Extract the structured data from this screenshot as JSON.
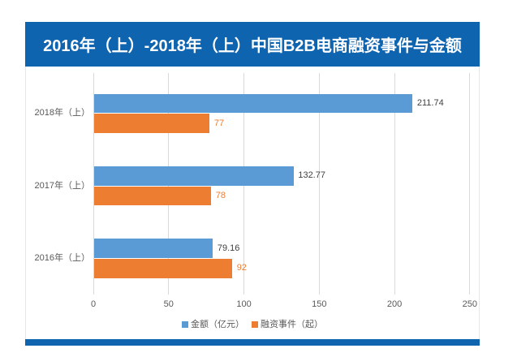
{
  "page": {
    "background": "#ffffff"
  },
  "card": {
    "title": "2016年（上）-2018年（上）中国B2B电商融资事件与金额",
    "header_bg": "#0f64b0",
    "footer_bg": "#0f64b0",
    "body_bg": "#ffffff",
    "border_color": "#e7e7e7"
  },
  "chart_data": {
    "type": "bar",
    "orientation": "horizontal",
    "title": "2016年（上）-2018年（上）中国B2B电商融资事件与金额",
    "categories": [
      "2018年（上）",
      "2017年（上）",
      "2016年（上）"
    ],
    "series": [
      {
        "name": "金额（亿元）",
        "color": "#5b9bd5",
        "label_color": "#404040",
        "values": [
          211.74,
          132.77,
          79.16
        ]
      },
      {
        "name": "融资事件（起）",
        "color": "#ed7d31",
        "label_color": "#ed7d31",
        "values": [
          77,
          78,
          92
        ]
      }
    ],
    "xlim": [
      0,
      250
    ],
    "xticks": [
      "0",
      "50",
      "100",
      "150",
      "200",
      "250"
    ],
    "grid": true,
    "gridline_color": "#d9d9d9",
    "axis_text_color": "#595959",
    "category_text_color": "#595959",
    "legend_position": "bottom",
    "legend_text_color": "#595959"
  }
}
